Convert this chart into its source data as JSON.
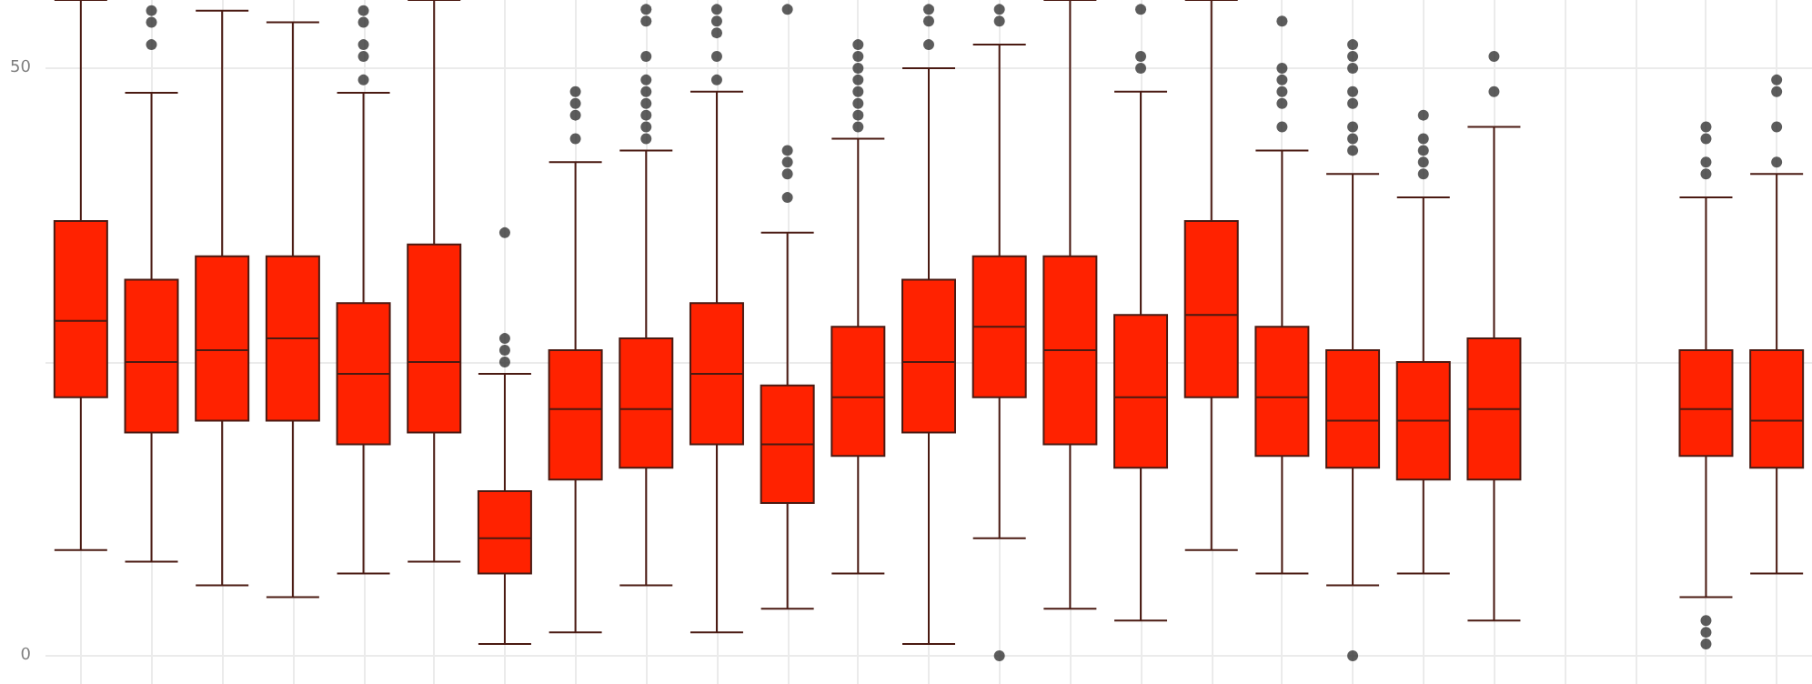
{
  "chart_data": {
    "type": "box",
    "categories": [
      null,
      null,
      null,
      null,
      null,
      null,
      null,
      null,
      null,
      null,
      null,
      null,
      null,
      null,
      null,
      null,
      null,
      null,
      null,
      null,
      null,
      null,
      null,
      null,
      null
    ],
    "ylim": [
      -2.4,
      55.8
    ],
    "yticks": [
      0,
      {
        "value": 25,
        "label": null
      },
      50
    ],
    "grid": true,
    "color": "#ff2200",
    "boxes": [
      {
        "low": 9,
        "q1": 22,
        "median": 28.5,
        "q3": 37,
        "high": 55.8
      },
      {
        "low": 8,
        "q1": 19,
        "median": 25,
        "q3": 32,
        "high": 47.9,
        "outliers": [
          52,
          53.9,
          54.9
        ]
      },
      {
        "low": 6,
        "q1": 20,
        "median": 26,
        "q3": 34,
        "high": 54.9
      },
      {
        "low": 5,
        "q1": 20,
        "median": 27,
        "q3": 34,
        "high": 53.9
      },
      {
        "low": 7,
        "q1": 18,
        "median": 24,
        "q3": 30,
        "high": 47.9,
        "outliers": [
          49,
          51,
          52,
          53.9,
          54.9
        ]
      },
      {
        "low": 8,
        "q1": 19,
        "median": 25,
        "q3": 35,
        "high": 55.8
      },
      {
        "low": 1,
        "q1": 7,
        "median": 10,
        "q3": 14,
        "high": 24,
        "outliers": [
          25,
          26,
          27,
          36
        ]
      },
      {
        "low": 2,
        "q1": 15,
        "median": 21,
        "q3": 26,
        "high": 42,
        "outliers": [
          44,
          46,
          47,
          48
        ]
      },
      {
        "low": 6,
        "q1": 16,
        "median": 21,
        "q3": 27,
        "high": 43,
        "outliers": [
          44,
          45,
          46,
          47,
          48,
          49,
          51,
          54,
          55
        ]
      },
      {
        "low": 2,
        "q1": 18,
        "median": 24,
        "q3": 30,
        "high": 48,
        "outliers": [
          49,
          51,
          53,
          54,
          55
        ]
      },
      {
        "low": 4,
        "q1": 13,
        "median": 18,
        "q3": 23,
        "high": 36,
        "outliers": [
          39,
          41,
          42,
          43,
          55
        ]
      },
      {
        "low": 7,
        "q1": 17,
        "median": 22,
        "q3": 28,
        "high": 44,
        "outliers": [
          45,
          46,
          47,
          48,
          49,
          50,
          51,
          52
        ]
      },
      {
        "low": 1,
        "q1": 19,
        "median": 25,
        "q3": 32,
        "high": 50,
        "outliers": [
          52,
          54,
          55
        ]
      },
      {
        "low": 10,
        "q1": 22,
        "median": 28,
        "q3": 34,
        "high": 52,
        "outliers": [
          0,
          54,
          55
        ]
      },
      {
        "low": 4,
        "q1": 18,
        "median": 26,
        "q3": 34,
        "high": 55.8
      },
      {
        "low": 3,
        "q1": 16,
        "median": 22,
        "q3": 29,
        "high": 48,
        "outliers": [
          50,
          51,
          55
        ]
      },
      {
        "low": 9,
        "q1": 22,
        "median": 29,
        "q3": 37,
        "high": 55.8
      },
      {
        "low": 7,
        "q1": 17,
        "median": 22,
        "q3": 28,
        "high": 43,
        "outliers": [
          45,
          47,
          48,
          49,
          50,
          54
        ]
      },
      {
        "low": 6,
        "q1": 16,
        "median": 20,
        "q3": 26,
        "high": 41,
        "outliers": [
          0,
          43,
          44,
          45,
          47,
          48,
          50,
          51,
          52
        ]
      },
      {
        "low": 7,
        "q1": 15,
        "median": 20,
        "q3": 25,
        "high": 39,
        "outliers": [
          41,
          42,
          43,
          44,
          46
        ]
      },
      {
        "low": 3,
        "q1": 15,
        "median": 21,
        "q3": 27,
        "high": 45,
        "outliers": [
          48,
          51
        ]
      },
      null,
      null,
      {
        "low": 5,
        "q1": 17,
        "median": 21,
        "q3": 26,
        "high": 39,
        "outliers": [
          1,
          2,
          3,
          41,
          42,
          44,
          45
        ]
      },
      {
        "low": 7,
        "q1": 16,
        "median": 20,
        "q3": 26,
        "high": 41,
        "outliers": [
          42,
          45,
          48,
          49
        ]
      }
    ]
  }
}
